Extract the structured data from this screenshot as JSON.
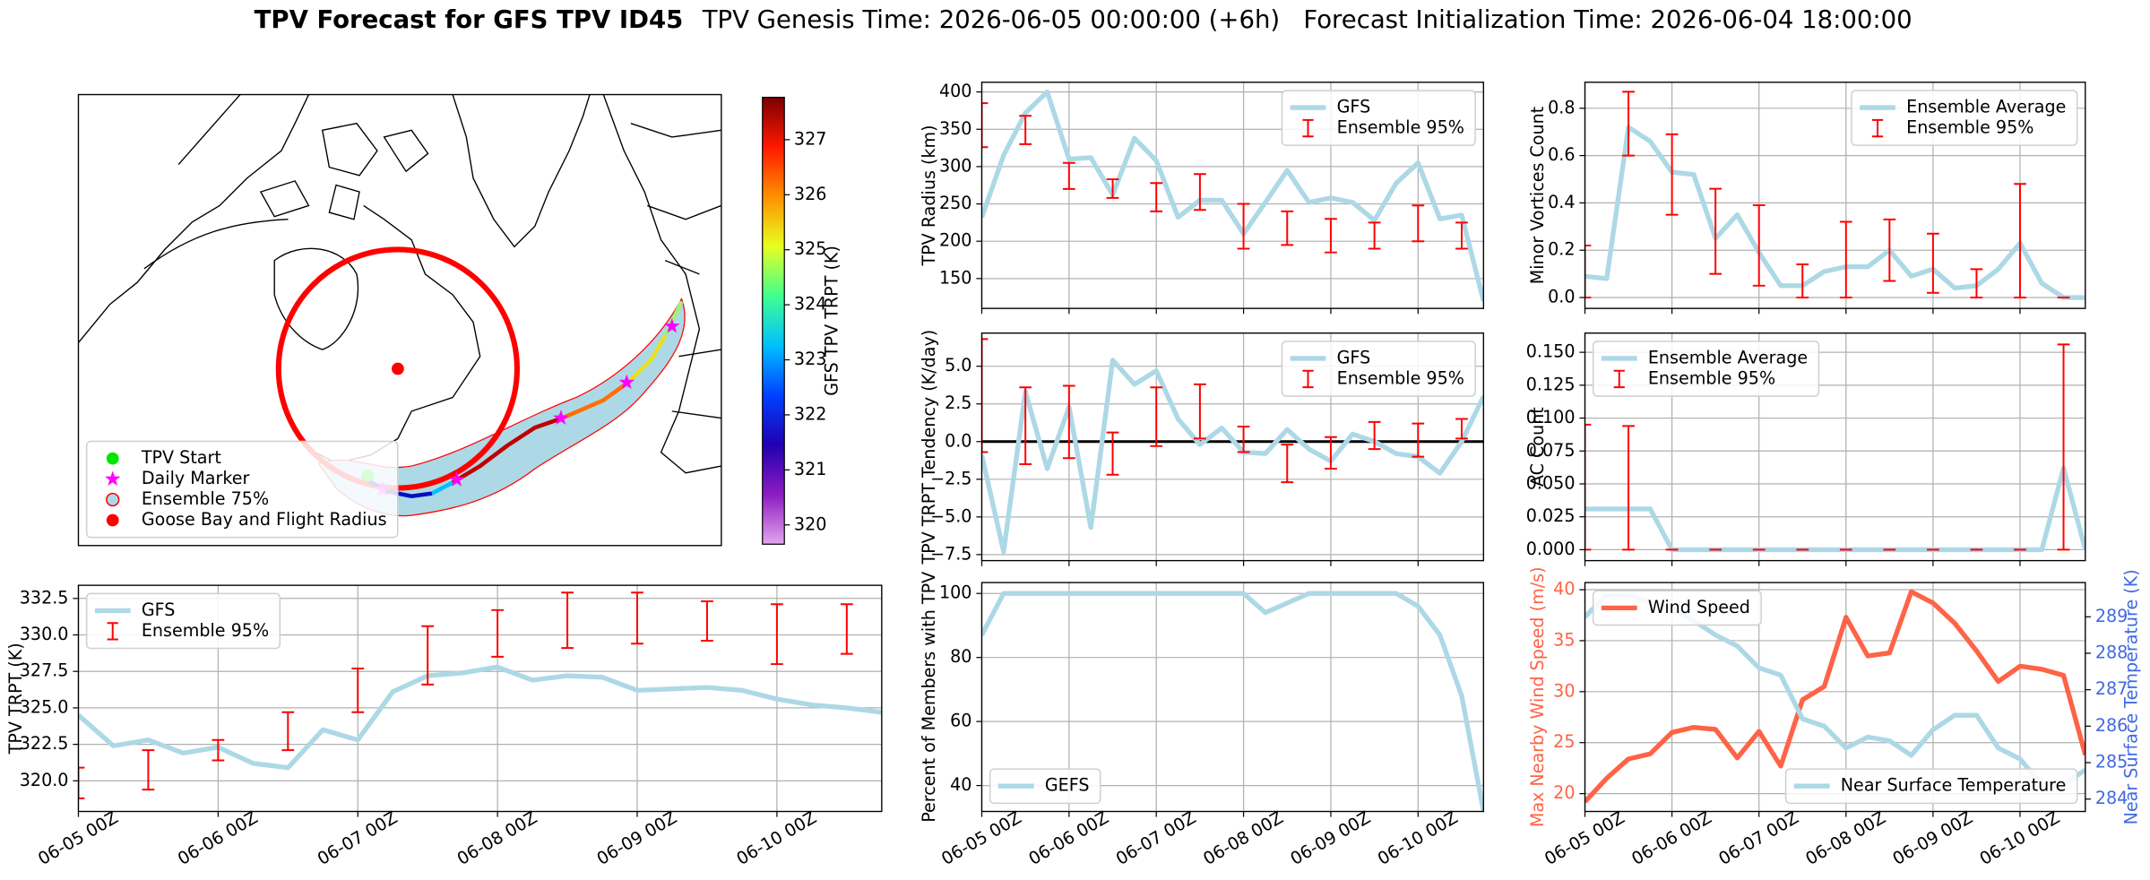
{
  "figure": {
    "title": "TPV Forecast for GFS TPV ID45",
    "subtitle": "TPV Genesis Time: 2026-06-05 00:00:00 (+6h)   Forecast Initialization Time: 2026-06-04 18:00:00"
  },
  "chart_data": [
    {
      "type": "map",
      "legend": "lower left",
      "legend_entries": [
        {
          "name": "TPV Start",
          "color": "#00e600",
          "marker": "circle"
        },
        {
          "name": "Daily Marker",
          "color": "#ff00ff",
          "marker": "star"
        },
        {
          "name": "Ensemble 75%",
          "color": "#add8e6",
          "edge_color": "#ff0000",
          "marker": "circle"
        },
        {
          "name": "Goose Bay and Flight Radius",
          "color": "#ff0000",
          "marker": "circle"
        }
      ],
      "colorbar": {
        "label": "GFS TPV TRPT (K)",
        "lim": [
          319.65,
          327.77
        ],
        "ticks": [
          320,
          321,
          322,
          323,
          324,
          325,
          326,
          327
        ],
        "colors": [
          "#e2a6ee",
          "#8c1cc0",
          "#2000b0",
          "#0040ff",
          "#00c0ff",
          "#40ff90",
          "#e8ff20",
          "#ff9000",
          "#ff1800",
          "#7a0000"
        ]
      }
    },
    {
      "type": "line",
      "ylabel": "TPV TRPT (K)",
      "legend": "upper left",
      "grid": true,
      "show_xtick_labels": true,
      "x": [
        "06-05 00Z",
        "06-05 06Z",
        "06-05 12Z",
        "06-05 18Z",
        "06-06 00Z",
        "06-06 06Z",
        "06-06 12Z",
        "06-06 18Z",
        "06-07 00Z",
        "06-07 06Z",
        "06-07 12Z",
        "06-07 18Z",
        "06-08 00Z",
        "06-08 06Z",
        "06-08 12Z",
        "06-08 18Z",
        "06-09 00Z",
        "06-09 06Z",
        "06-09 12Z",
        "06-09 18Z",
        "06-10 00Z",
        "06-10 06Z",
        "06-10 12Z",
        "06-10 18Z"
      ],
      "xticks": [
        "06-05 00Z",
        "06-06 00Z",
        "06-07 00Z",
        "06-08 00Z",
        "06-09 00Z",
        "06-10 00Z"
      ],
      "ylim": [
        317.9,
        333.4
      ],
      "yticks": [
        {
          "value": 320,
          "label": "320.0"
        },
        322.5,
        {
          "value": 325,
          "label": "325.0"
        },
        327.5,
        {
          "value": 330,
          "label": "330.0"
        },
        332.5
      ],
      "series": [
        {
          "name": "GFS",
          "color": "#add8e6",
          "values": [
            324.5,
            322.4,
            322.8,
            321.9,
            322.3,
            321.2,
            320.9,
            323.5,
            322.8,
            326.1,
            327.2,
            327.4,
            327.8,
            326.9,
            327.2,
            327.1,
            326.2,
            326.3,
            326.4,
            326.2,
            325.6,
            325.2,
            325.0,
            324.7
          ]
        },
        {
          "name": "Ensemble 95%",
          "color": "#ff0000",
          "lower": [
            318.8,
            null,
            319.4,
            null,
            321.4,
            null,
            322.1,
            null,
            324.7,
            null,
            326.6,
            null,
            328.5,
            null,
            329.1,
            null,
            329.4,
            null,
            329.6,
            null,
            328.0,
            null,
            328.7,
            null
          ],
          "upper": [
            320.9,
            null,
            322.1,
            null,
            322.8,
            null,
            324.7,
            null,
            327.7,
            null,
            330.6,
            null,
            331.7,
            null,
            332.9,
            null,
            332.9,
            null,
            332.3,
            null,
            332.1,
            null,
            332.1,
            null
          ]
        }
      ]
    },
    {
      "type": "line",
      "ylabel": "TPV Radius (km)",
      "legend": "upper right",
      "grid": true,
      "show_xtick_labels": false,
      "x": [
        "06-05 00Z",
        "06-05 06Z",
        "06-05 12Z",
        "06-05 18Z",
        "06-06 00Z",
        "06-06 06Z",
        "06-06 12Z",
        "06-06 18Z",
        "06-07 00Z",
        "06-07 06Z",
        "06-07 12Z",
        "06-07 18Z",
        "06-08 00Z",
        "06-08 06Z",
        "06-08 12Z",
        "06-08 18Z",
        "06-09 00Z",
        "06-09 06Z",
        "06-09 12Z",
        "06-09 18Z",
        "06-10 00Z",
        "06-10 06Z",
        "06-10 12Z",
        "06-10 18Z"
      ],
      "xticks": [
        "06-05 00Z",
        "06-06 00Z",
        "06-07 00Z",
        "06-08 00Z",
        "06-09 00Z",
        "06-10 00Z"
      ],
      "ylim": [
        110,
        413
      ],
      "yticks": [
        150,
        200,
        250,
        300,
        350,
        400
      ],
      "series": [
        {
          "name": "GFS",
          "color": "#add8e6",
          "values": [
            232,
            315,
            372,
            400,
            310,
            312,
            262,
            338,
            308,
            232,
            255,
            255,
            210,
            252,
            295,
            252,
            258,
            252,
            228,
            278,
            305,
            230,
            235,
            120
          ]
        },
        {
          "name": "Ensemble 95%",
          "color": "#ff0000",
          "lower": [
            326,
            null,
            330,
            null,
            270,
            null,
            258,
            null,
            240,
            null,
            242,
            null,
            190,
            null,
            195,
            null,
            185,
            null,
            190,
            null,
            200,
            null,
            190,
            null
          ],
          "upper": [
            385,
            null,
            368,
            null,
            305,
            null,
            283,
            null,
            278,
            null,
            290,
            null,
            250,
            null,
            240,
            null,
            230,
            null,
            225,
            null,
            248,
            null,
            225,
            null
          ]
        }
      ]
    },
    {
      "type": "line",
      "ylabel": "TPV TRPT Tendency (K/day)",
      "legend": "upper right",
      "grid": true,
      "show_xtick_labels": false,
      "x": [
        "06-05 00Z",
        "06-05 06Z",
        "06-05 12Z",
        "06-05 18Z",
        "06-06 00Z",
        "06-06 06Z",
        "06-06 12Z",
        "06-06 18Z",
        "06-07 00Z",
        "06-07 06Z",
        "06-07 12Z",
        "06-07 18Z",
        "06-08 00Z",
        "06-08 06Z",
        "06-08 12Z",
        "06-08 18Z",
        "06-09 00Z",
        "06-09 06Z",
        "06-09 12Z",
        "06-09 18Z",
        "06-10 00Z",
        "06-10 06Z",
        "06-10 12Z",
        "06-10 18Z"
      ],
      "xticks": [
        "06-05 00Z",
        "06-06 00Z",
        "06-07 00Z",
        "06-08 00Z",
        "06-09 00Z",
        "06-10 00Z"
      ],
      "ylim": [
        -7.9,
        7.2
      ],
      "yticks": [
        {
          "value": -7.5,
          "label": "−7.5"
        },
        {
          "value": -5,
          "label": "−5.0"
        },
        {
          "value": -2.5,
          "label": "−2.5"
        },
        {
          "value": 0,
          "label": "0.0"
        },
        2.5,
        {
          "value": 5,
          "label": "5.0"
        }
      ],
      "reference_line": {
        "value": 0,
        "color": "#000000"
      },
      "series": [
        {
          "name": "GFS",
          "color": "#add8e6",
          "values": [
            -0.9,
            -7.3,
            3.3,
            -1.8,
            2.3,
            -5.7,
            5.4,
            3.8,
            4.7,
            1.5,
            -0.2,
            0.9,
            -0.7,
            -0.8,
            0.8,
            -0.5,
            -1.3,
            0.5,
            0.0,
            -0.8,
            -1.0,
            -2.1,
            0.0,
            3.0
          ]
        },
        {
          "name": "Ensemble 95%",
          "color": "#ff0000",
          "lower": [
            -0.7,
            null,
            -1.5,
            null,
            -1.1,
            null,
            -2.2,
            null,
            -0.3,
            null,
            0.2,
            null,
            -0.7,
            null,
            -2.7,
            null,
            -1.8,
            null,
            -0.5,
            null,
            -1.0,
            null,
            0.2,
            null
          ],
          "upper": [
            6.8,
            null,
            3.6,
            null,
            3.7,
            null,
            0.6,
            null,
            3.6,
            null,
            3.8,
            null,
            1.0,
            null,
            -0.2,
            null,
            0.3,
            null,
            1.3,
            null,
            1.2,
            null,
            1.5,
            null
          ]
        }
      ]
    },
    {
      "type": "line",
      "ylabel": "Percent of Members with TPV",
      "legend": "lower left",
      "grid": true,
      "show_xtick_labels": true,
      "x": [
        "06-05 00Z",
        "06-05 06Z",
        "06-05 12Z",
        "06-05 18Z",
        "06-06 00Z",
        "06-06 06Z",
        "06-06 12Z",
        "06-06 18Z",
        "06-07 00Z",
        "06-07 06Z",
        "06-07 12Z",
        "06-07 18Z",
        "06-08 00Z",
        "06-08 06Z",
        "06-08 12Z",
        "06-08 18Z",
        "06-09 00Z",
        "06-09 06Z",
        "06-09 12Z",
        "06-09 18Z",
        "06-10 00Z",
        "06-10 06Z",
        "06-10 12Z",
        "06-10 18Z"
      ],
      "xticks": [
        "06-05 00Z",
        "06-06 00Z",
        "06-07 00Z",
        "06-08 00Z",
        "06-09 00Z",
        "06-10 00Z"
      ],
      "ylim": [
        31.9,
        103.4
      ],
      "yticks": [
        40,
        60,
        80,
        100
      ],
      "series": [
        {
          "name": "GEFS",
          "color": "#add8e6",
          "values": [
            87,
            100,
            100,
            100,
            100,
            100,
            100,
            100,
            100,
            100,
            100,
            100,
            100,
            94,
            97,
            100,
            100,
            100,
            100,
            100,
            96,
            87,
            68,
            32
          ]
        }
      ]
    },
    {
      "type": "line",
      "ylabel": "Minor Vortices Count",
      "legend": "upper right",
      "grid": true,
      "show_xtick_labels": false,
      "x": [
        "06-05 00Z",
        "06-05 06Z",
        "06-05 12Z",
        "06-05 18Z",
        "06-06 00Z",
        "06-06 06Z",
        "06-06 12Z",
        "06-06 18Z",
        "06-07 00Z",
        "06-07 06Z",
        "06-07 12Z",
        "06-07 18Z",
        "06-08 00Z",
        "06-08 06Z",
        "06-08 12Z",
        "06-08 18Z",
        "06-09 00Z",
        "06-09 06Z",
        "06-09 12Z",
        "06-09 18Z",
        "06-10 00Z",
        "06-10 06Z",
        "06-10 12Z",
        "06-10 18Z"
      ],
      "xticks": [
        "06-05 00Z",
        "06-06 00Z",
        "06-07 00Z",
        "06-08 00Z",
        "06-09 00Z",
        "06-10 00Z"
      ],
      "ylim": [
        -0.046,
        0.91
      ],
      "yticks": [
        {
          "value": 0,
          "label": "0.0"
        },
        0.2,
        0.4,
        0.6,
        0.8
      ],
      "series": [
        {
          "name": "Ensemble Average",
          "color": "#add8e6",
          "values": [
            0.09,
            0.08,
            0.72,
            0.66,
            0.53,
            0.52,
            0.25,
            0.35,
            0.19,
            0.05,
            0.05,
            0.11,
            0.13,
            0.13,
            0.2,
            0.09,
            0.12,
            0.04,
            0.05,
            0.12,
            0.23,
            0.06,
            0,
            0
          ]
        },
        {
          "name": "Ensemble 95%",
          "color": "#ff0000",
          "lower": [
            0,
            null,
            0.6,
            null,
            0.35,
            null,
            0.1,
            null,
            0.05,
            null,
            0,
            null,
            0,
            null,
            0.07,
            null,
            0.02,
            null,
            0,
            null,
            0,
            null,
            0,
            null
          ],
          "upper": [
            0.22,
            null,
            0.87,
            null,
            0.69,
            null,
            0.46,
            null,
            0.39,
            null,
            0.14,
            null,
            0.32,
            null,
            0.33,
            null,
            0.27,
            null,
            0.12,
            null,
            0.48,
            null,
            0,
            null
          ]
        }
      ]
    },
    {
      "type": "line",
      "ylabel": "AC Count",
      "legend": "upper left",
      "grid": true,
      "show_xtick_labels": false,
      "x": [
        "06-05 00Z",
        "06-05 06Z",
        "06-05 12Z",
        "06-05 18Z",
        "06-06 00Z",
        "06-06 06Z",
        "06-06 12Z",
        "06-06 18Z",
        "06-07 00Z",
        "06-07 06Z",
        "06-07 12Z",
        "06-07 18Z",
        "06-08 00Z",
        "06-08 06Z",
        "06-08 12Z",
        "06-08 18Z",
        "06-09 00Z",
        "06-09 06Z",
        "06-09 12Z",
        "06-09 18Z",
        "06-10 00Z",
        "06-10 06Z",
        "06-10 12Z",
        "06-10 18Z"
      ],
      "xticks": [
        "06-05 00Z",
        "06-06 00Z",
        "06-07 00Z",
        "06-08 00Z",
        "06-09 00Z",
        "06-10 00Z"
      ],
      "ylim": [
        -0.0083,
        0.1646
      ],
      "yticks": [
        {
          "value": 0,
          "label": "0.000"
        },
        0.025,
        {
          "value": 0.05,
          "label": "0.050"
        },
        0.075,
        {
          "value": 0.1,
          "label": "0.100"
        },
        0.125,
        {
          "value": 0.15,
          "label": "0.150"
        }
      ],
      "series": [
        {
          "name": "Ensemble Average",
          "color": "#add8e6",
          "values": [
            0.031,
            0.031,
            0.031,
            0.031,
            0,
            0,
            0,
            0,
            0,
            0,
            0,
            0,
            0,
            0,
            0,
            0,
            0,
            0,
            0,
            0,
            0,
            0,
            0.062,
            0
          ]
        },
        {
          "name": "Ensemble 95%",
          "color": "#ff0000",
          "lower": [
            0,
            null,
            0,
            null,
            0,
            null,
            0,
            null,
            0,
            null,
            0,
            null,
            0,
            null,
            0,
            null,
            0,
            null,
            0,
            null,
            0,
            null,
            0,
            null
          ],
          "upper": [
            0.095,
            null,
            0.094,
            null,
            0,
            null,
            0,
            null,
            0,
            null,
            0,
            null,
            0,
            null,
            0,
            null,
            0,
            null,
            0,
            null,
            0,
            null,
            0.156,
            null
          ]
        }
      ]
    },
    {
      "type": "line",
      "ylabel": "Max Nearby Wind Speed (m/s)",
      "ylabel_color": "#ff6347",
      "y2label": "Near Surface Temperature (K)",
      "y2label_color": "#4169e1",
      "grid": true,
      "show_xtick_labels": true,
      "x": [
        "06-05 00Z",
        "06-05 06Z",
        "06-05 12Z",
        "06-05 18Z",
        "06-06 00Z",
        "06-06 06Z",
        "06-06 12Z",
        "06-06 18Z",
        "06-07 00Z",
        "06-07 06Z",
        "06-07 12Z",
        "06-07 18Z",
        "06-08 00Z",
        "06-08 06Z",
        "06-08 12Z",
        "06-08 18Z",
        "06-09 00Z",
        "06-09 06Z",
        "06-09 12Z",
        "06-09 18Z",
        "06-10 00Z",
        "06-10 06Z",
        "06-10 12Z",
        "06-10 18Z"
      ],
      "xticks": [
        "06-05 00Z",
        "06-06 00Z",
        "06-07 00Z",
        "06-08 00Z",
        "06-09 00Z",
        "06-10 00Z"
      ],
      "ylim": [
        18.25,
        40.7
      ],
      "yticks": [
        20,
        25,
        30,
        35,
        40
      ],
      "y2lim": [
        283.66,
        289.94
      ],
      "y2ticks": [
        284,
        285,
        286,
        287,
        288,
        289
      ],
      "series": [
        {
          "name": "Wind Speed",
          "color": "#ff6347",
          "legend": "upper left",
          "values": [
            19.2,
            21.5,
            23.4,
            23.9,
            26.0,
            26.5,
            26.3,
            23.5,
            26.1,
            22.7,
            29.2,
            30.5,
            37.3,
            33.5,
            33.8,
            39.8,
            38.7,
            36.7,
            34.0,
            31.0,
            32.5,
            32.2,
            31.6,
            23.8
          ]
        },
        {
          "name": "Near Surface Temperature",
          "color": "#add8e6",
          "axis": "y2",
          "legend": "lower right",
          "values": [
            289.0,
            289.6,
            289.6,
            289.4,
            289.2,
            288.9,
            288.5,
            288.2,
            287.6,
            287.4,
            286.2,
            286.0,
            285.4,
            285.7,
            285.6,
            285.2,
            285.9,
            286.3,
            286.3,
            285.4,
            285.1,
            284.4,
            284.4,
            284.8
          ]
        }
      ]
    }
  ]
}
